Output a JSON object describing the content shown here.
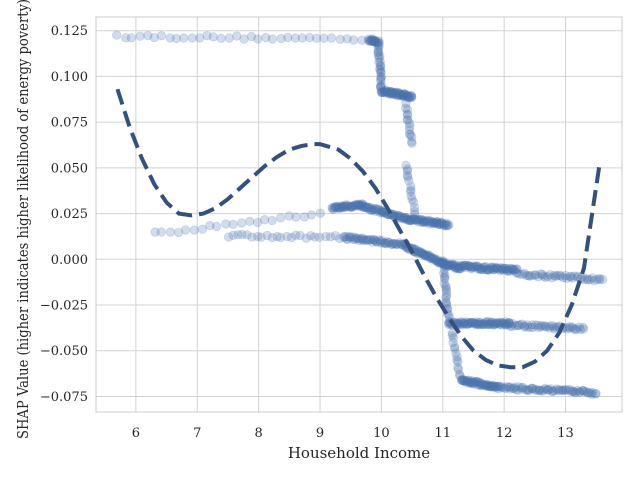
{
  "chart_data": {
    "type": "scatter",
    "title": "",
    "xlabel": "Household Income",
    "ylabel": "SHAP Value (higher indicates higher likelihood of energy poverty)",
    "xlim": [
      5.35,
      13.92
    ],
    "ylim": [
      -0.0835,
      0.1325
    ],
    "x_ticks": [
      6,
      7,
      8,
      9,
      10,
      11,
      12,
      13
    ],
    "x_tick_labels": [
      "6",
      "7",
      "8",
      "9",
      "10",
      "11",
      "12",
      "13"
    ],
    "y_ticks": [
      -0.075,
      -0.05,
      -0.025,
      0.0,
      0.025,
      0.05,
      0.075,
      0.1,
      0.125
    ],
    "y_tick_labels": [
      "−0.075",
      "−0.050",
      "−0.025",
      "0.000",
      "0.025",
      "0.050",
      "0.075",
      "0.100",
      "0.125"
    ],
    "grid": true,
    "legend": "none",
    "colors": {
      "points": "#4c72b0",
      "fit_line": "#34507e",
      "grid": "#d3d3d3",
      "spine": "#cccccc"
    },
    "series": [
      {
        "kind": "scatter-bands",
        "point_opacity": 0.25,
        "bands": [
          {
            "x0": 5.7,
            "x1": 9.8,
            "y0": 0.122,
            "y1": 0.1205,
            "n": 35
          },
          {
            "x0": 9.8,
            "x1": 9.95,
            "y0": 0.12,
            "y1": 0.119,
            "n": 20
          },
          {
            "x0": 9.95,
            "x1": 10.0,
            "y0": 0.118,
            "y1": 0.093,
            "n": 25
          },
          {
            "x0": 10.0,
            "x1": 10.5,
            "y0": 0.092,
            "y1": 0.089,
            "n": 60
          },
          {
            "x0": 10.4,
            "x1": 10.5,
            "y0": 0.085,
            "y1": 0.063,
            "n": 15
          },
          {
            "x0": 6.3,
            "x1": 9.0,
            "y0": 0.014,
            "y1": 0.025,
            "n": 22
          },
          {
            "x0": 9.2,
            "x1": 9.7,
            "y0": 0.028,
            "y1": 0.03,
            "n": 45
          },
          {
            "x0": 9.7,
            "x1": 10.4,
            "y0": 0.029,
            "y1": 0.022,
            "n": 55
          },
          {
            "x0": 10.4,
            "x1": 11.1,
            "y0": 0.022,
            "y1": 0.019,
            "n": 60
          },
          {
            "x0": 10.4,
            "x1": 10.55,
            "y0": 0.052,
            "y1": 0.025,
            "n": 15
          },
          {
            "x0": 7.5,
            "x1": 9.4,
            "y0": 0.013,
            "y1": 0.012,
            "n": 25
          },
          {
            "x0": 9.4,
            "x1": 10.4,
            "y0": 0.012,
            "y1": 0.008,
            "n": 55
          },
          {
            "x0": 10.4,
            "x1": 11.0,
            "y0": 0.007,
            "y1": -0.002,
            "n": 55
          },
          {
            "x0": 11.0,
            "x1": 11.3,
            "y0": -0.002,
            "y1": -0.005,
            "n": 30
          },
          {
            "x0": 11.3,
            "x1": 12.2,
            "y0": -0.004,
            "y1": -0.006,
            "n": 70
          },
          {
            "x0": 12.2,
            "x1": 13.6,
            "y0": -0.008,
            "y1": -0.011,
            "n": 45
          },
          {
            "x0": 11.0,
            "x1": 11.1,
            "y0": 0.0,
            "y1": -0.034,
            "n": 25
          },
          {
            "x0": 11.1,
            "x1": 12.1,
            "y0": -0.035,
            "y1": -0.035,
            "n": 80
          },
          {
            "x0": 12.1,
            "x1": 13.3,
            "y0": -0.036,
            "y1": -0.038,
            "n": 45
          },
          {
            "x0": 11.15,
            "x1": 11.3,
            "y0": -0.04,
            "y1": -0.066,
            "n": 15
          },
          {
            "x0": 11.3,
            "x1": 11.9,
            "y0": -0.066,
            "y1": -0.07,
            "n": 55
          },
          {
            "x0": 11.9,
            "x1": 13.5,
            "y0": -0.07,
            "y1": -0.073,
            "n": 70
          }
        ]
      },
      {
        "kind": "fit-line",
        "style": "dashed",
        "x": [
          5.7,
          5.9,
          6.1,
          6.3,
          6.5,
          6.7,
          6.9,
          7.1,
          7.3,
          7.5,
          7.7,
          7.9,
          8.1,
          8.3,
          8.5,
          8.7,
          8.9,
          9.0,
          9.1,
          9.3,
          9.5,
          9.7,
          9.9,
          10.1,
          10.3,
          10.5,
          10.7,
          10.9,
          11.1,
          11.3,
          11.5,
          11.7,
          11.9,
          12.1,
          12.3,
          12.5,
          12.7,
          12.9,
          13.1,
          13.3,
          13.55
        ],
        "y": [
          0.093,
          0.072,
          0.055,
          0.041,
          0.031,
          0.025,
          0.024,
          0.025,
          0.028,
          0.033,
          0.039,
          0.045,
          0.051,
          0.056,
          0.06,
          0.062,
          0.063,
          0.063,
          0.062,
          0.06,
          0.055,
          0.048,
          0.039,
          0.028,
          0.016,
          0.004,
          -0.009,
          -0.021,
          -0.032,
          -0.042,
          -0.05,
          -0.055,
          -0.058,
          -0.059,
          -0.059,
          -0.056,
          -0.05,
          -0.04,
          -0.025,
          -0.005,
          0.051
        ]
      }
    ]
  }
}
